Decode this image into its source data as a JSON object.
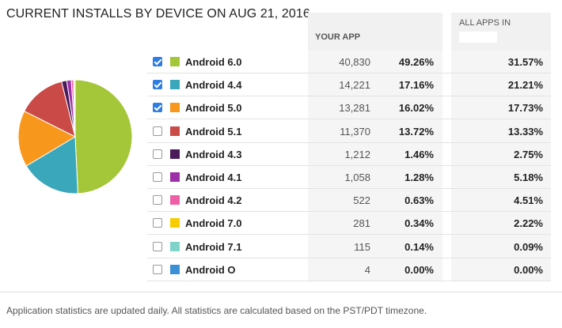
{
  "title": "CURRENT INSTALLS BY DEVICE ON AUG 21, 2016",
  "headers": {
    "your_app": "YOUR APP",
    "all_apps": "ALL APPS IN"
  },
  "footer": "Application statistics are updated daily. All statistics are calculated based on the PST/PDT timezone.",
  "rows": [
    {
      "label": "Android 6.0",
      "count": "40,830",
      "pct": "49.26%",
      "all_pct": "31.57%",
      "checked": true,
      "color": "#a4c639"
    },
    {
      "label": "Android 4.4",
      "count": "14,221",
      "pct": "17.16%",
      "all_pct": "21.21%",
      "checked": true,
      "color": "#3aa7bb"
    },
    {
      "label": "Android 5.0",
      "count": "13,281",
      "pct": "16.02%",
      "all_pct": "17.73%",
      "checked": true,
      "color": "#f7981d"
    },
    {
      "label": "Android 5.1",
      "count": "11,370",
      "pct": "13.72%",
      "all_pct": "13.33%",
      "checked": false,
      "color": "#c94a46"
    },
    {
      "label": "Android 4.3",
      "count": "1,212",
      "pct": "1.46%",
      "all_pct": "2.75%",
      "checked": false,
      "color": "#4b1a5a"
    },
    {
      "label": "Android 4.1",
      "count": "1,058",
      "pct": "1.28%",
      "all_pct": "5.18%",
      "checked": false,
      "color": "#9c2fa8"
    },
    {
      "label": "Android 4.2",
      "count": "522",
      "pct": "0.63%",
      "all_pct": "4.51%",
      "checked": false,
      "color": "#ee5fa8"
    },
    {
      "label": "Android 7.0",
      "count": "281",
      "pct": "0.34%",
      "all_pct": "2.22%",
      "checked": false,
      "color": "#f7cc00"
    },
    {
      "label": "Android 7.1",
      "count": "115",
      "pct": "0.14%",
      "all_pct": "0.09%",
      "checked": false,
      "color": "#7fd3c9"
    },
    {
      "label": "Android O",
      "count": "4",
      "pct": "0.00%",
      "all_pct": "0.00%",
      "checked": false,
      "color": "#3b8fd6"
    }
  ],
  "pie": {
    "order": [
      "Android 6.0",
      "Android 4.4",
      "Android 5.0",
      "Android 5.1",
      "Android 4.3",
      "Android 4.1",
      "Android 4.2",
      "Android 7.0",
      "Android 7.1",
      "Android O"
    ],
    "values": [
      49.26,
      17.16,
      16.02,
      13.72,
      1.46,
      1.28,
      0.63,
      0.34,
      0.14,
      0.0
    ]
  }
}
